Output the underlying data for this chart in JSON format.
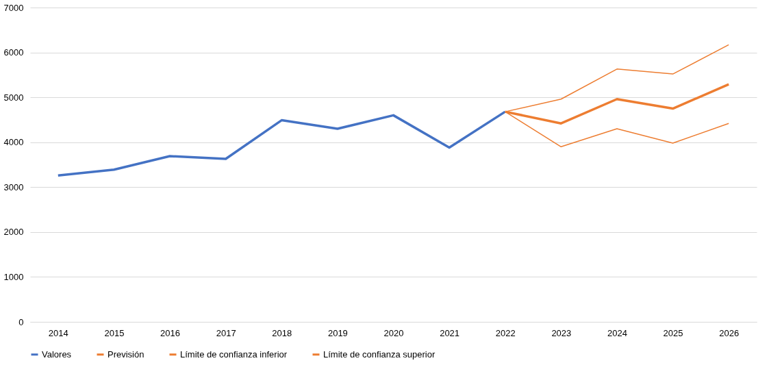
{
  "chart_data": {
    "type": "line",
    "categories": [
      "2014",
      "2015",
      "2016",
      "2017",
      "2018",
      "2019",
      "2020",
      "2021",
      "2022",
      "2023",
      "2024",
      "2025",
      "2026"
    ],
    "series": [
      {
        "name": "Valores",
        "color": "#4472c4",
        "values": [
          3260,
          3390,
          3690,
          3630,
          4490,
          4300,
          4600,
          3880,
          4680,
          null,
          null,
          null,
          null
        ]
      },
      {
        "name": "Previsión",
        "color": "#ed7d31",
        "values": [
          null,
          null,
          null,
          null,
          null,
          null,
          null,
          null,
          4680,
          4420,
          4960,
          4750,
          5290
        ]
      },
      {
        "name": "Límite de confianza inferior",
        "color": "#ed7d31",
        "values": [
          null,
          null,
          null,
          null,
          null,
          null,
          null,
          null,
          4680,
          3900,
          4300,
          3980,
          4420
        ]
      },
      {
        "name": "Límite de confianza superior",
        "color": "#ed7d31",
        "values": [
          null,
          null,
          null,
          null,
          null,
          null,
          null,
          null,
          4680,
          4960,
          5630,
          5520,
          6170
        ]
      }
    ],
    "ylim": [
      0,
      7000
    ],
    "yticks": [
      0,
      1000,
      2000,
      3000,
      4000,
      5000,
      6000,
      7000
    ],
    "grid": "y",
    "legend": "bottom",
    "marker": "none",
    "line_style": "solid"
  }
}
